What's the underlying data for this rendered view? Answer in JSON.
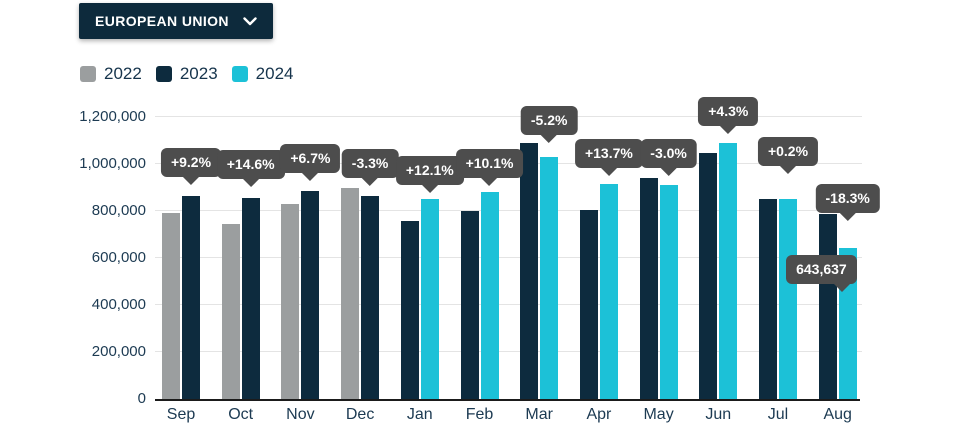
{
  "header": {
    "region_selector": {
      "label": "EUROPEAN UNION"
    }
  },
  "legend": [
    {
      "label": "2022",
      "color": "#9b9e9f"
    },
    {
      "label": "2023",
      "color": "#0d2b3e"
    },
    {
      "label": "2024",
      "color": "#1cc1d7"
    }
  ],
  "chart_data": {
    "type": "bar",
    "title": "",
    "xlabel": "",
    "ylabel": "",
    "categories": [
      "Sep",
      "Oct",
      "Nov",
      "Dec",
      "Jan",
      "Feb",
      "Mar",
      "Apr",
      "May",
      "Jun",
      "Jul",
      "Aug"
    ],
    "series": [
      {
        "name": "2022",
        "color": "#9b9e9f",
        "values": [
          790000,
          746000,
          831000,
          896000,
          null,
          null,
          null,
          null,
          null,
          null,
          null,
          null
        ]
      },
      {
        "name": "2023",
        "color": "#0d2b3e",
        "values": [
          863000,
          855000,
          887000,
          866000,
          758000,
          802000,
          1089000,
          806000,
          940000,
          1046000,
          851000,
          787600
        ]
      },
      {
        "name": "2024",
        "color": "#1cc1d7",
        "values": [
          null,
          null,
          null,
          null,
          850000,
          883000,
          1032000,
          916000,
          912000,
          1091000,
          853000,
          643637
        ]
      }
    ],
    "annotations": [
      {
        "category": "Sep",
        "kind": "pct",
        "text": "+9.2%"
      },
      {
        "category": "Oct",
        "kind": "pct",
        "text": "+14.6%"
      },
      {
        "category": "Nov",
        "kind": "pct",
        "text": "+6.7%"
      },
      {
        "category": "Dec",
        "kind": "pct",
        "text": "-3.3%"
      },
      {
        "category": "Jan",
        "kind": "pct",
        "text": "+12.1%"
      },
      {
        "category": "Feb",
        "kind": "pct",
        "text": "+10.1%"
      },
      {
        "category": "Mar",
        "kind": "pct",
        "text": "-5.2%"
      },
      {
        "category": "Apr",
        "kind": "pct",
        "text": "+13.7%"
      },
      {
        "category": "May",
        "kind": "pct",
        "text": "-3.0%"
      },
      {
        "category": "Jun",
        "kind": "pct",
        "text": "+4.3%"
      },
      {
        "category": "Jul",
        "kind": "pct",
        "text": "+0.2%"
      },
      {
        "category": "Aug",
        "kind": "pct",
        "text": "-18.3%"
      },
      {
        "category": "Aug",
        "kind": "value",
        "text": "643,637"
      }
    ],
    "y_axis": {
      "ticks": [
        "0",
        "200,000",
        "400,000",
        "600,000",
        "800,000",
        "1,000,000",
        "1,200,000"
      ],
      "min": 0,
      "max": 1200000
    },
    "grid": true,
    "legend_position": "top-left"
  }
}
